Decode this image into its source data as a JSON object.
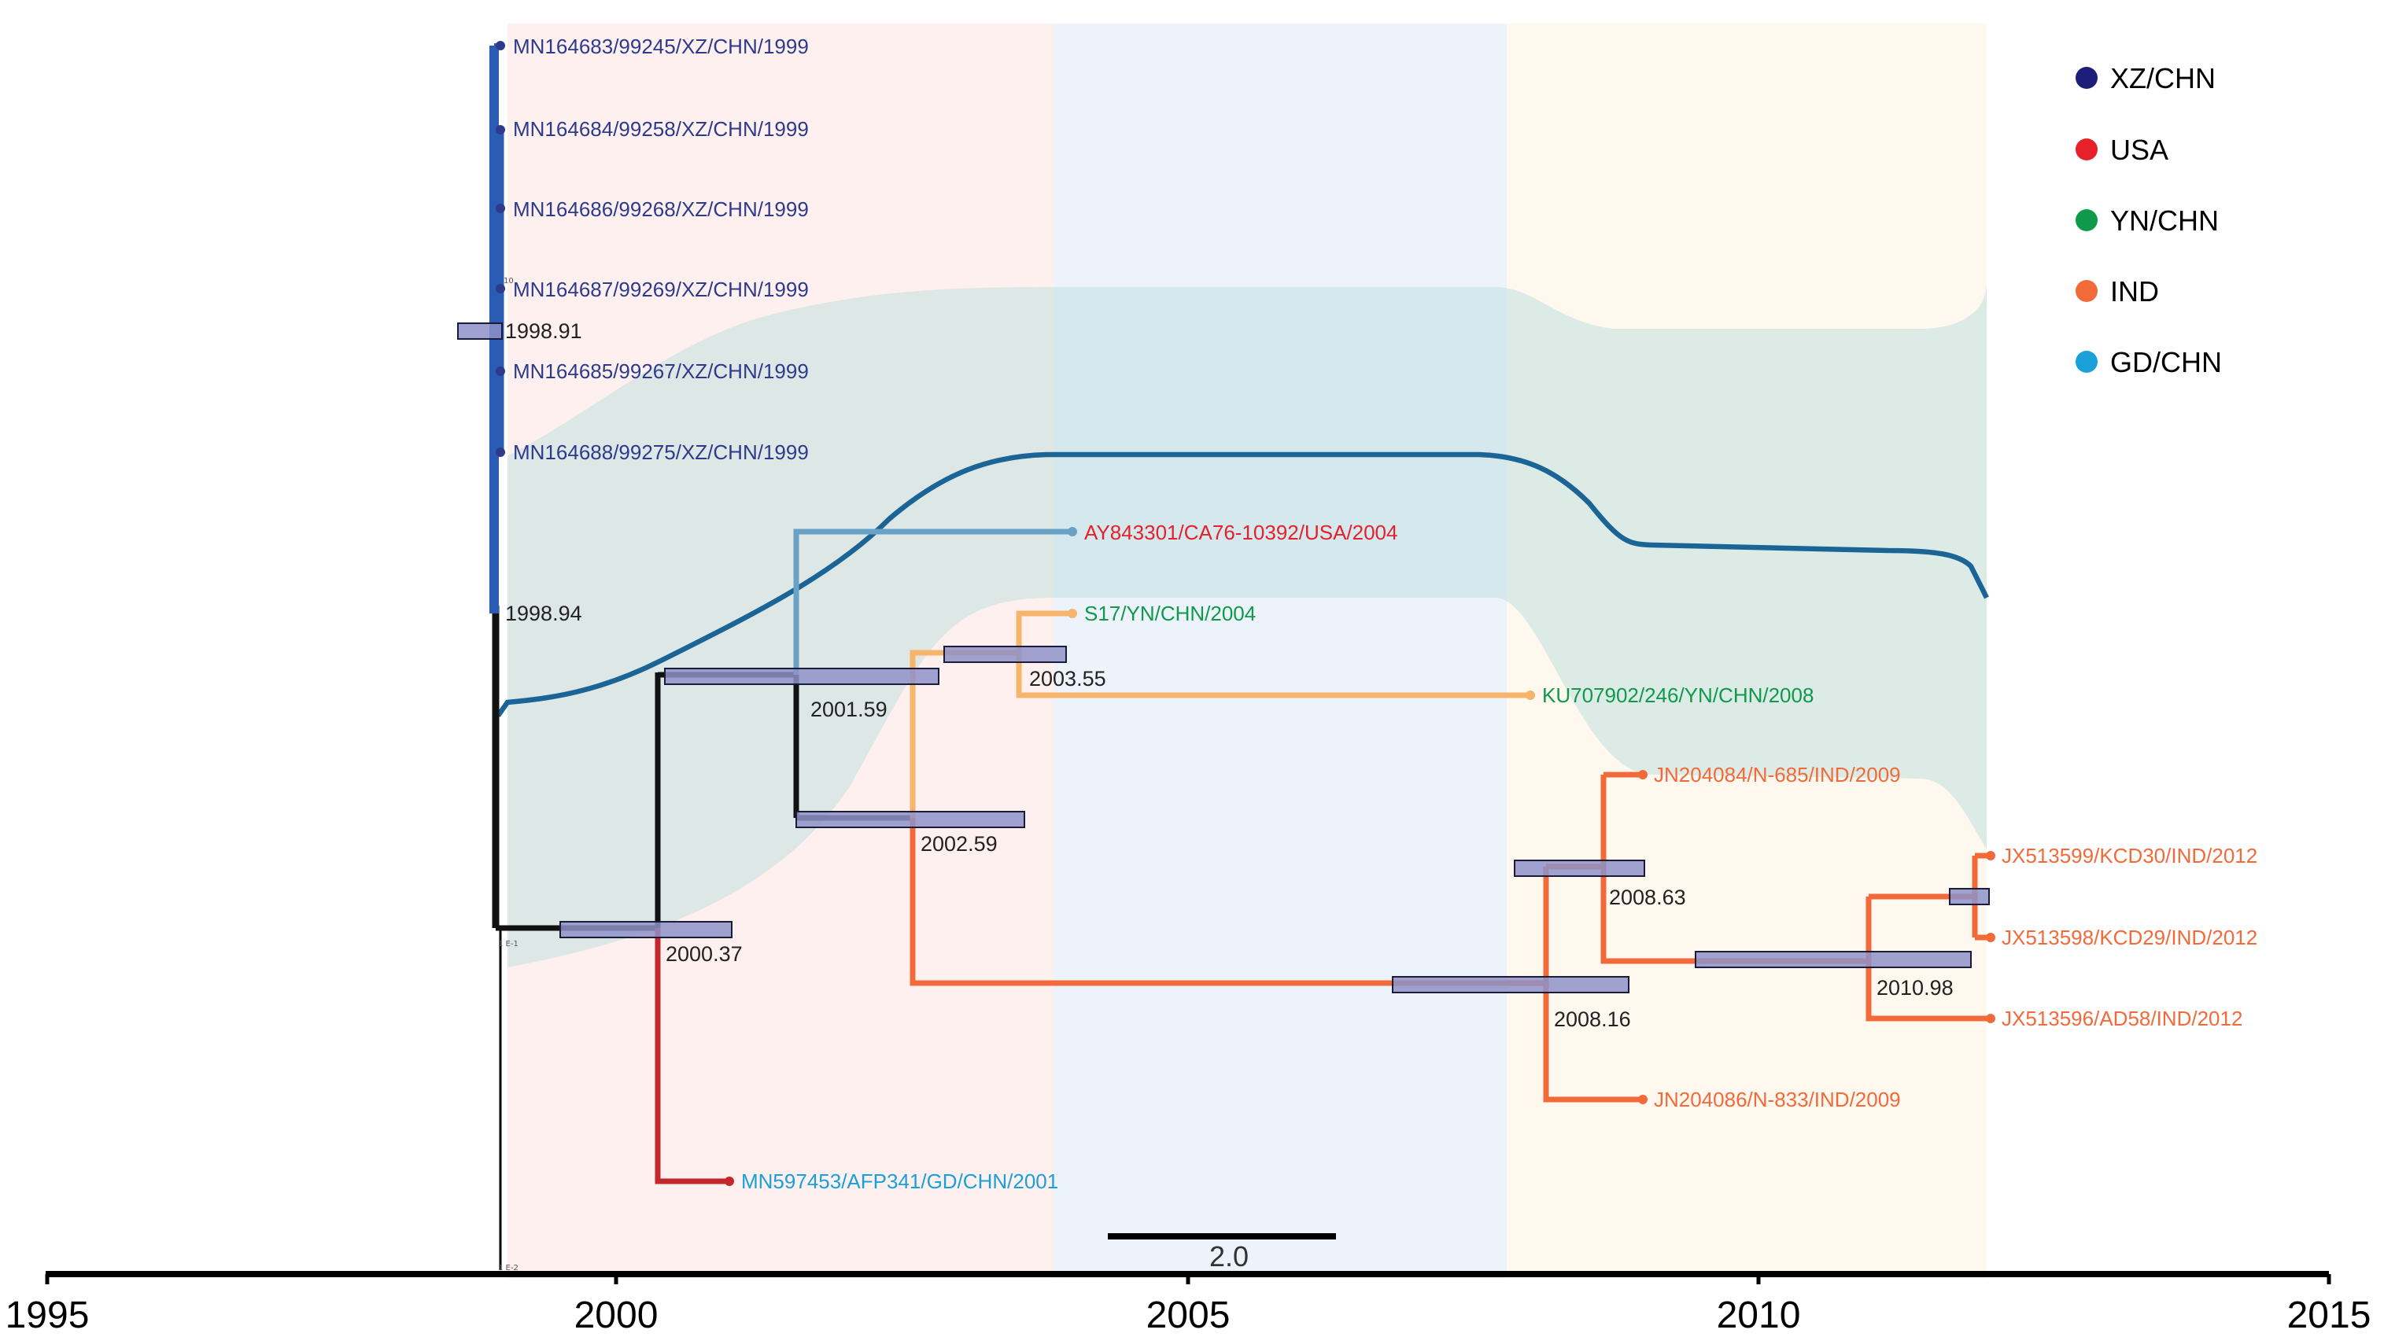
{
  "axis": {
    "ticks": [
      "1995",
      "2000",
      "2005",
      "2010",
      "2015"
    ]
  },
  "scale_bar": {
    "label": "2.0"
  },
  "tiny_labels": {
    "a": "10",
    "b": "1 E-1",
    "c": "1 E-2"
  },
  "legend": [
    {
      "label": "XZ/CHN",
      "color": "#1c1e7a"
    },
    {
      "label": "USA",
      "color": "#e6212a"
    },
    {
      "label": "YN/CHN",
      "color": "#0e9a4a"
    },
    {
      "label": "IND",
      "color": "#f26a3a"
    },
    {
      "label": "GD/CHN",
      "color": "#1aa0d8"
    }
  ],
  "node_labels": {
    "n1998_91": "1998.91",
    "n1998_94": "1998.94",
    "n2000_37": "2000.37",
    "n2001_59": "2001.59",
    "n2002_59": "2002.59",
    "n2003_55": "2003.55",
    "n2008_16": "2008.16",
    "n2008_63": "2008.63",
    "n2010_98": "2010.98"
  },
  "tips": {
    "xz1": "MN164683/99245/XZ/CHN/1999",
    "xz2": "MN164684/99258/XZ/CHN/1999",
    "xz3": "MN164686/99268/XZ/CHN/1999",
    "xz4": "MN164687/99269/XZ/CHN/1999",
    "xz5": "MN164685/99267/XZ/CHN/1999",
    "xz6": "MN164688/99275/XZ/CHN/1999",
    "usa": "AY843301/CA76-10392/USA/2004",
    "yn1": "S17/YN/CHN/2004",
    "yn2": "KU707902/246/YN/CHN/2008",
    "ind1": "JN204084/N-685/IND/2009",
    "ind2": "JX513599/KCD30/IND/2012",
    "ind3": "JX513598/KCD29/IND/2012",
    "ind4": "JX513596/AD58/IND/2012",
    "ind5": "JN204086/N-833/IND/2009",
    "gd": "MN597453/AFP341/GD/CHN/2001"
  },
  "colors": {
    "xz": "#2e3a8c",
    "usa": "#e6212a",
    "yn": "#0e9a4a",
    "ind": "#f26a3a",
    "gd": "#1aa0d8",
    "trend": "#1b6496"
  }
}
